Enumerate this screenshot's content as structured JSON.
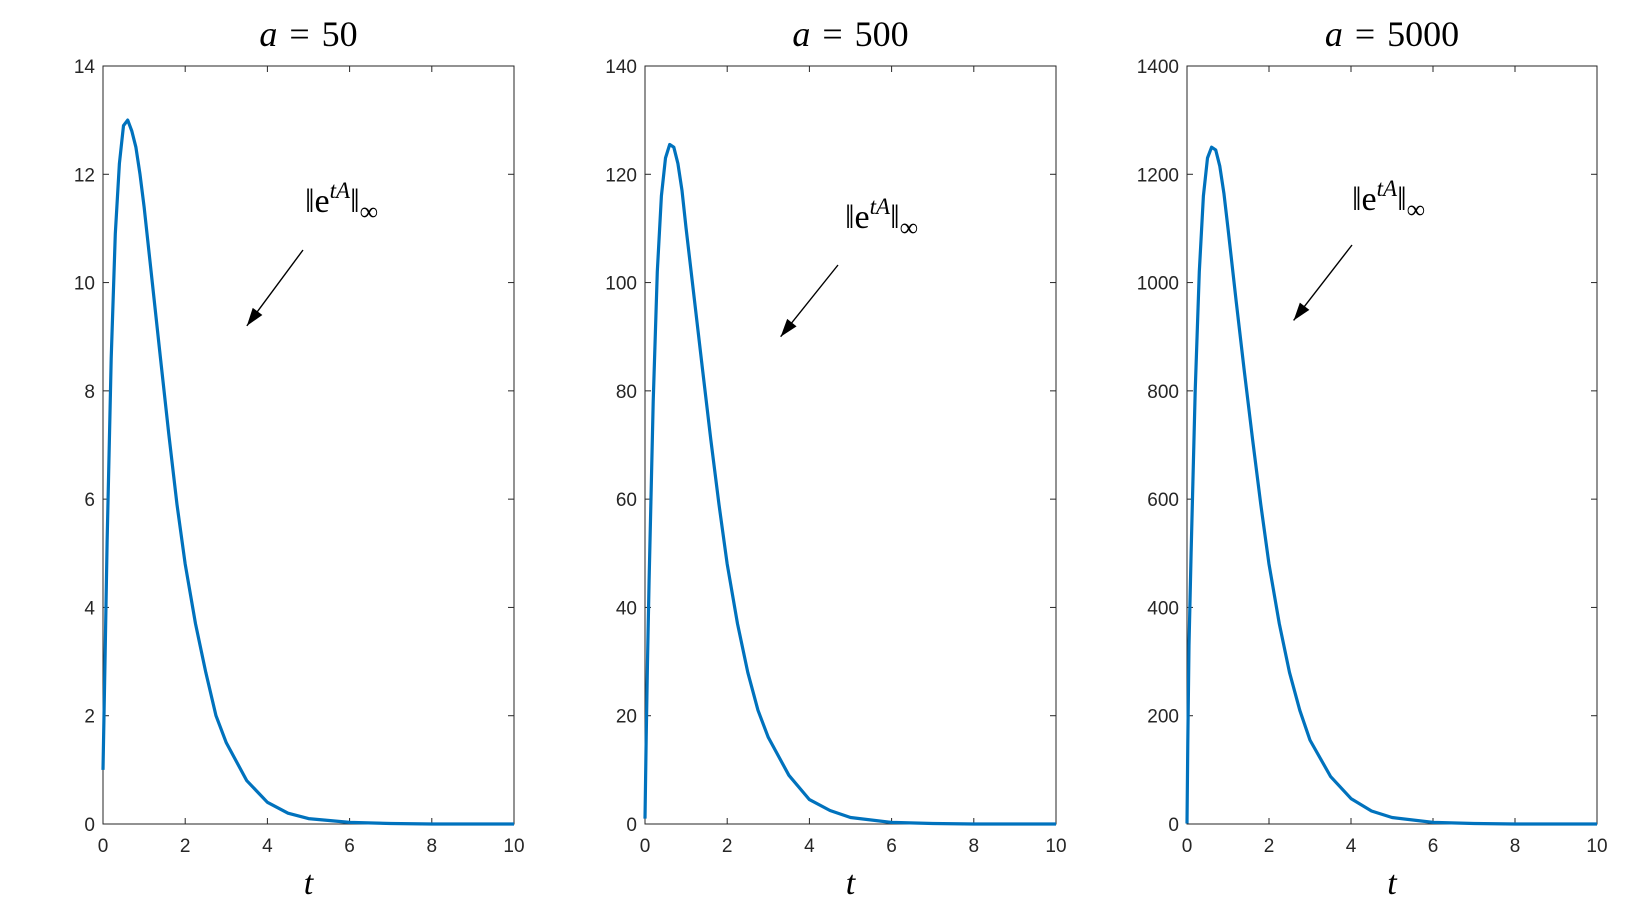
{
  "chart_data": [
    {
      "type": "line",
      "title_var": "a",
      "title_op": "=",
      "title_value": "50",
      "xlabel": "t",
      "xlim": [
        0,
        10
      ],
      "ylim": [
        0,
        14
      ],
      "xticks": [
        "0",
        "2",
        "4",
        "6",
        "8",
        "10"
      ],
      "yticks": [
        "0",
        "2",
        "4",
        "6",
        "8",
        "10",
        "12",
        "14"
      ],
      "annotation": {
        "base": "e",
        "sup": "tA",
        "sub": "∞",
        "target": [
          3.5,
          9.2
        ]
      },
      "series": [
        {
          "color": "#0072BD",
          "x": [
            0,
            0.05,
            0.1,
            0.2,
            0.3,
            0.4,
            0.5,
            0.6,
            0.7,
            0.8,
            0.9,
            1.0,
            1.2,
            1.4,
            1.6,
            1.8,
            2.0,
            2.25,
            2.5,
            2.75,
            3.0,
            3.5,
            4.0,
            4.5,
            5.0,
            6.0,
            7.0,
            8.0,
            9.0,
            10.0
          ],
          "values": [
            1.0,
            3.1,
            5.2,
            8.6,
            10.9,
            12.2,
            12.9,
            13.0,
            12.8,
            12.5,
            12.0,
            11.4,
            10.0,
            8.6,
            7.2,
            5.9,
            4.8,
            3.7,
            2.8,
            2.0,
            1.5,
            0.8,
            0.4,
            0.2,
            0.1,
            0.03,
            0.01,
            0.0,
            0.0,
            0.0
          ]
        }
      ]
    },
    {
      "type": "line",
      "title_var": "a",
      "title_op": "=",
      "title_value": "500",
      "xlabel": "t",
      "xlim": [
        0,
        10
      ],
      "ylim": [
        0,
        140
      ],
      "xticks": [
        "0",
        "2",
        "4",
        "6",
        "8",
        "10"
      ],
      "yticks": [
        "0",
        "20",
        "40",
        "60",
        "80",
        "100",
        "120",
        "140"
      ],
      "annotation": {
        "base": "e",
        "sup": "tA",
        "sub": "∞",
        "target": [
          3.3,
          90
        ]
      },
      "series": [
        {
          "color": "#0072BD",
          "x": [
            0,
            0.03,
            0.06,
            0.1,
            0.2,
            0.3,
            0.4,
            0.5,
            0.6,
            0.7,
            0.8,
            0.9,
            1.0,
            1.2,
            1.4,
            1.6,
            1.8,
            2.0,
            2.25,
            2.5,
            2.75,
            3.0,
            3.5,
            4.0,
            4.5,
            5.0,
            6.0,
            7.0,
            8.0,
            9.0,
            10.0
          ],
          "values": [
            1,
            16,
            30,
            45,
            78,
            102,
            116,
            123,
            125.5,
            125,
            122,
            117,
            110,
            97,
            84,
            71,
            59,
            48,
            37,
            28,
            21,
            16,
            9,
            4.5,
            2.5,
            1.2,
            0.3,
            0.1,
            0.0,
            0.0,
            0.0
          ]
        }
      ]
    },
    {
      "type": "line",
      "title_var": "a",
      "title_op": "=",
      "title_value": "5000",
      "xlabel": "t",
      "xlim": [
        0,
        10
      ],
      "ylim": [
        0,
        1400
      ],
      "xticks": [
        "0",
        "2",
        "4",
        "6",
        "8",
        "10"
      ],
      "yticks": [
        "0",
        "200",
        "400",
        "600",
        "800",
        "1000",
        "1200",
        "1400"
      ],
      "annotation": {
        "base": "e",
        "sup": "tA",
        "sub": "∞",
        "target": [
          2.6,
          930
        ]
      },
      "series": [
        {
          "color": "#0072BD",
          "x": [
            0,
            0.02,
            0.05,
            0.1,
            0.2,
            0.3,
            0.4,
            0.5,
            0.6,
            0.7,
            0.8,
            0.9,
            1.0,
            1.2,
            1.4,
            1.6,
            1.8,
            2.0,
            2.25,
            2.5,
            2.75,
            3.0,
            3.5,
            4.0,
            4.5,
            5.0,
            6.0,
            7.0,
            8.0,
            9.0,
            10.0
          ],
          "values": [
            1,
            150,
            330,
            500,
            800,
            1020,
            1160,
            1230,
            1250,
            1245,
            1215,
            1165,
            1100,
            965,
            835,
            710,
            590,
            480,
            370,
            280,
            210,
            155,
            88,
            47,
            24,
            12,
            3,
            1,
            0,
            0,
            0
          ]
        }
      ]
    }
  ]
}
